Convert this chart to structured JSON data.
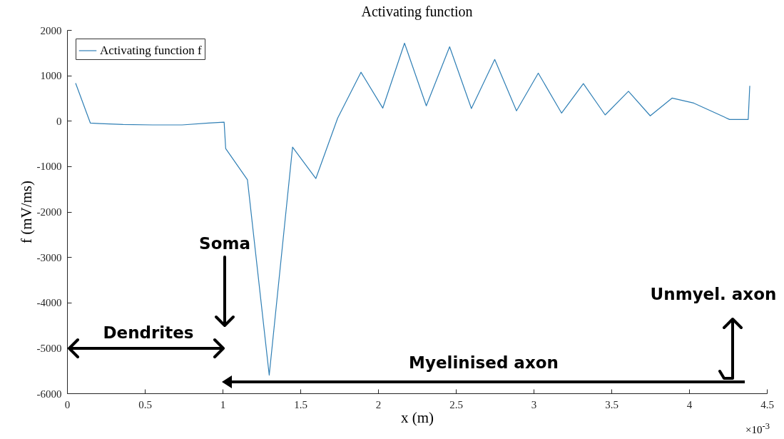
{
  "chart_data": {
    "type": "line",
    "title": "Activating function",
    "xlabel": "x (m)",
    "ylabel": "f (mV/ms)",
    "xlim": [
      0,
      4.5
    ],
    "ylim": [
      -6000,
      2000
    ],
    "xticks": [
      0,
      0.5,
      1,
      1.5,
      2,
      2.5,
      3,
      3.5,
      4,
      4.5
    ],
    "yticks": [
      -6000,
      -5000,
      -4000,
      -3000,
      -2000,
      -1000,
      0,
      1000,
      2000
    ],
    "grid": false,
    "legend": "top left",
    "marker": "none",
    "line_style": "solid",
    "series": [
      {
        "name": "Activating function f",
        "color": "#2f7fb5",
        "x": [
          0.055,
          0.15,
          0.21,
          0.36,
          0.55,
          0.74,
          0.91,
          1.01,
          1.02,
          1.16,
          1.3,
          1.45,
          1.6,
          1.74,
          1.89,
          2.03,
          2.17,
          2.31,
          2.46,
          2.6,
          2.75,
          2.89,
          3.03,
          3.18,
          3.32,
          3.46,
          3.61,
          3.75,
          3.89,
          4.03,
          4.26,
          4.38,
          4.39
        ],
        "values": [
          830,
          -50,
          -60,
          -80,
          -90,
          -90,
          -50,
          -30,
          -610,
          -1300,
          -5600,
          -580,
          -1270,
          60,
          1070,
          280,
          1710,
          330,
          1630,
          270,
          1350,
          220,
          1050,
          170,
          820,
          130,
          650,
          110,
          500,
          390,
          30,
          30,
          770
        ]
      }
    ],
    "annotations": [
      "Soma",
      "Dendrites",
      "Myelinised axon",
      "Unmyel. axon",
      "×10$^{-3}$"
    ]
  }
}
